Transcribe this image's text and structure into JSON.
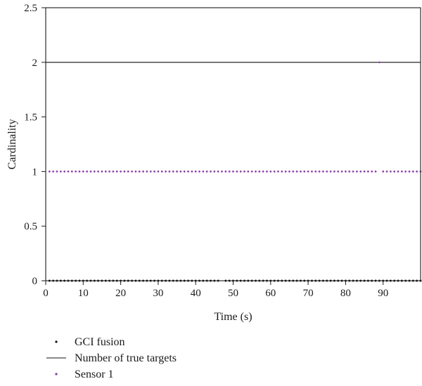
{
  "chart_data": {
    "type": "scatter",
    "xlabel": "Time (s)",
    "ylabel": "Cardinality",
    "xlim": [
      0,
      100
    ],
    "ylim": [
      0,
      2.5
    ],
    "x_ticks": [
      0,
      10,
      20,
      30,
      40,
      50,
      60,
      70,
      80,
      90
    ],
    "y_ticks": [
      0,
      0.5,
      1,
      1.5,
      2,
      2.5
    ],
    "x_tick_labels": [
      "0",
      "10",
      "20",
      "30",
      "40",
      "50",
      "60",
      "70",
      "80",
      "90"
    ],
    "y_tick_labels": [
      "0",
      "0.5",
      "1",
      "1.5",
      "2",
      "2.5"
    ],
    "grid": false,
    "legend_position": "bottom-left, below plot",
    "series": [
      {
        "name": "GCI fusion",
        "kind": "points",
        "color": "#111111",
        "x": [
          1,
          2,
          3,
          4,
          5,
          6,
          7,
          8,
          9,
          10,
          11,
          12,
          13,
          14,
          15,
          16,
          17,
          18,
          19,
          20,
          21,
          22,
          23,
          24,
          25,
          26,
          27,
          28,
          29,
          30,
          31,
          32,
          33,
          34,
          35,
          36,
          37,
          38,
          39,
          40,
          41,
          42,
          43,
          44,
          45,
          46,
          48,
          49,
          50,
          51,
          52,
          53,
          54,
          55,
          56,
          57,
          58,
          59,
          60,
          61,
          62,
          63,
          64,
          65,
          66,
          67,
          68,
          69,
          70,
          71,
          72,
          73,
          74,
          75,
          76,
          77,
          78,
          79,
          80,
          81,
          82,
          83,
          84,
          85,
          86,
          87,
          88,
          89,
          90,
          91,
          92,
          93,
          94,
          95,
          96,
          97,
          98,
          99,
          100
        ],
        "y_constant": 0
      },
      {
        "name": "Number of true targets",
        "kind": "line",
        "color": "#111111",
        "x": [
          0,
          100
        ],
        "y": [
          2,
          2
        ]
      },
      {
        "name": "Sensor 1",
        "kind": "points",
        "color": "#8a3aa8",
        "x": [
          1,
          2,
          3,
          4,
          5,
          6,
          7,
          8,
          9,
          10,
          11,
          12,
          13,
          14,
          15,
          16,
          17,
          18,
          19,
          20,
          21,
          22,
          23,
          24,
          25,
          26,
          27,
          28,
          29,
          30,
          31,
          32,
          33,
          34,
          35,
          36,
          37,
          38,
          39,
          40,
          41,
          42,
          43,
          44,
          45,
          46,
          47,
          48,
          49,
          50,
          51,
          52,
          53,
          54,
          55,
          56,
          57,
          58,
          59,
          60,
          61,
          62,
          63,
          64,
          65,
          66,
          67,
          68,
          69,
          70,
          71,
          72,
          73,
          74,
          75,
          76,
          77,
          78,
          79,
          80,
          81,
          82,
          83,
          84,
          85,
          86,
          87,
          88,
          89,
          90,
          91,
          92,
          93,
          94,
          95,
          96,
          97,
          98,
          99,
          100
        ],
        "y": [
          1,
          1,
          1,
          1,
          1,
          1,
          1,
          1,
          1,
          1,
          1,
          1,
          1,
          1,
          1,
          1,
          1,
          1,
          1,
          1,
          1,
          1,
          1,
          1,
          1,
          1,
          1,
          1,
          1,
          1,
          1,
          1,
          1,
          1,
          1,
          1,
          1,
          1,
          1,
          1,
          1,
          1,
          1,
          1,
          1,
          1,
          1,
          1,
          1,
          1,
          1,
          1,
          1,
          1,
          1,
          1,
          1,
          1,
          1,
          1,
          1,
          1,
          1,
          1,
          1,
          1,
          1,
          1,
          1,
          1,
          1,
          1,
          1,
          1,
          1,
          1,
          1,
          1,
          1,
          1,
          1,
          1,
          1,
          1,
          1,
          1,
          1,
          1,
          2,
          1,
          1,
          1,
          1,
          1,
          1,
          1,
          1,
          1,
          1,
          1
        ]
      }
    ]
  }
}
